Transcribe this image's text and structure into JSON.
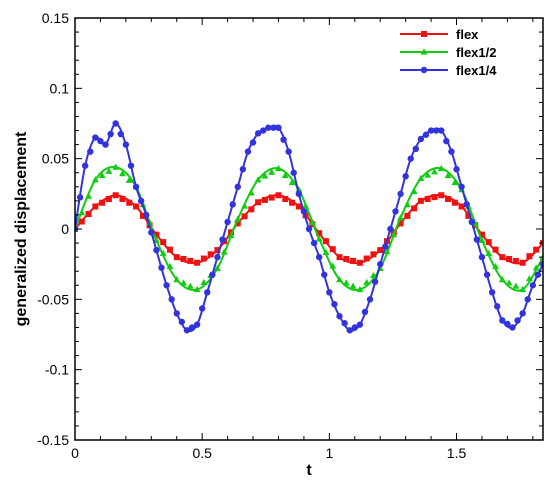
{
  "chart_data": {
    "type": "line",
    "xlabel": "t",
    "ylabel": "generalized displacement",
    "xlim": [
      0,
      1.84
    ],
    "ylim": [
      -0.15,
      0.15
    ],
    "x_ticks": [
      0,
      0.5,
      1,
      1.5
    ],
    "x_tick_labels": [
      "0",
      "0.5",
      "1",
      "1.5"
    ],
    "y_ticks": [
      -0.15,
      -0.1,
      -0.05,
      0,
      0.05,
      0.1,
      0.15
    ],
    "y_tick_labels": [
      "-0.15",
      "-0.1",
      "-0.05",
      "0",
      "0.05",
      "0.1",
      "0.15"
    ],
    "grid": false,
    "legend_position": "top-right",
    "series": [
      {
        "name": "flex",
        "color": "#ee1111",
        "marker": "square",
        "x": [
          0,
          0.08,
          0.16,
          0.24,
          0.32,
          0.4,
          0.48,
          0.56,
          0.64,
          0.72,
          0.8,
          0.88,
          0.96,
          1.04,
          1.12,
          1.2,
          1.28,
          1.36,
          1.44,
          1.52,
          1.6,
          1.68,
          1.76,
          1.84
        ],
        "values": [
          0,
          0.016,
          0.024,
          0.016,
          -0.004,
          -0.02,
          -0.024,
          -0.015,
          0.004,
          0.019,
          0.024,
          0.016,
          -0.003,
          -0.02,
          -0.024,
          -0.015,
          0.004,
          0.02,
          0.024,
          0.016,
          -0.004,
          -0.02,
          -0.024,
          -0.01
        ]
      },
      {
        "name": "flex1/2",
        "color": "#11cc11",
        "marker": "triangle",
        "x": [
          0,
          0.08,
          0.16,
          0.24,
          0.32,
          0.4,
          0.48,
          0.56,
          0.64,
          0.72,
          0.8,
          0.88,
          0.96,
          1.04,
          1.12,
          1.2,
          1.28,
          1.36,
          1.44,
          1.52,
          1.6,
          1.68,
          1.76,
          1.84
        ],
        "values": [
          0,
          0.035,
          0.044,
          0.03,
          -0.008,
          -0.036,
          -0.043,
          -0.028,
          0.007,
          0.035,
          0.043,
          0.028,
          -0.007,
          -0.036,
          -0.043,
          -0.028,
          0.008,
          0.036,
          0.043,
          0.028,
          -0.008,
          -0.036,
          -0.043,
          -0.02
        ]
      },
      {
        "name": "flex1/4",
        "color": "#3333dd",
        "marker": "circle",
        "x": [
          0,
          0.04,
          0.08,
          0.12,
          0.16,
          0.2,
          0.24,
          0.28,
          0.32,
          0.36,
          0.4,
          0.44,
          0.48,
          0.52,
          0.56,
          0.6,
          0.64,
          0.68,
          0.72,
          0.76,
          0.8,
          0.84,
          0.88,
          0.92,
          0.96,
          1.0,
          1.04,
          1.08,
          1.12,
          1.16,
          1.2,
          1.24,
          1.28,
          1.32,
          1.36,
          1.4,
          1.44,
          1.48,
          1.52,
          1.56,
          1.6,
          1.64,
          1.68,
          1.72,
          1.76,
          1.8,
          1.84
        ],
        "values": [
          0,
          0.045,
          0.065,
          0.06,
          0.075,
          0.06,
          0.03,
          0.01,
          -0.015,
          -0.04,
          -0.06,
          -0.072,
          -0.068,
          -0.045,
          -0.02,
          0.005,
          0.03,
          0.055,
          0.068,
          0.072,
          0.072,
          0.055,
          0.025,
          0.0,
          -0.02,
          -0.045,
          -0.062,
          -0.072,
          -0.068,
          -0.05,
          -0.025,
          0.0,
          0.025,
          0.05,
          0.064,
          0.07,
          0.07,
          0.055,
          0.03,
          0.005,
          -0.02,
          -0.045,
          -0.065,
          -0.07,
          -0.06,
          -0.04,
          -0.025
        ]
      }
    ]
  }
}
